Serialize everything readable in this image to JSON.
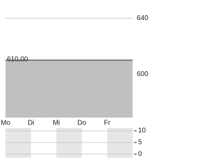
{
  "chart_data": [
    {
      "type": "line",
      "categories": [
        "Mo",
        "Di",
        "Mi",
        "Do",
        "Fr"
      ],
      "series": [
        {
          "color": "#808080",
          "fill": "#c0c0c0",
          "values": [
            610,
            610,
            610,
            610,
            610
          ],
          "value_labels": [
            "610,00",
            null,
            null,
            null,
            null
          ]
        }
      ],
      "ylim": [
        569,
        653
      ],
      "yticks": [
        600,
        640
      ],
      "grid": true
    },
    {
      "type": "bar",
      "ylim": [
        -1.5,
        11.2
      ],
      "yticks": [
        0,
        5,
        10
      ],
      "grid": true
    }
  ]
}
